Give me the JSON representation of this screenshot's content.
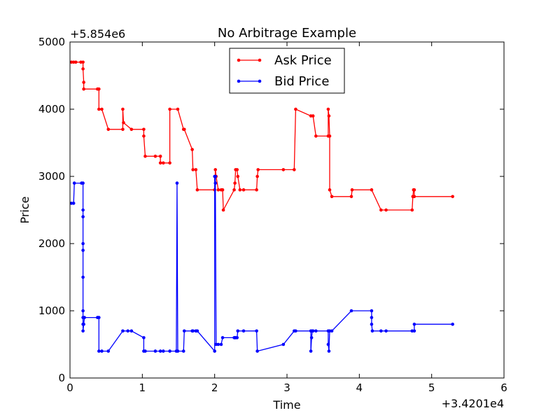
{
  "chart_data": {
    "type": "line",
    "title": "No Arbitrage Example",
    "xlabel": "Time",
    "ylabel": "Price",
    "x_offset_label": "+3.4201e4",
    "y_offset_label": "+5.854e6",
    "xlim": [
      0,
      6
    ],
    "ylim": [
      0,
      5000
    ],
    "x_ticks": [
      "0",
      "1",
      "2",
      "3",
      "4",
      "5",
      "6"
    ],
    "y_ticks": [
      "0",
      "1000",
      "2000",
      "3000",
      "4000",
      "5000"
    ],
    "legend_position": "top-center",
    "colors": {
      "ask": "#ff0000",
      "bid": "#0000ff"
    },
    "series": [
      {
        "name": "Ask Price",
        "color": "#ff0000",
        "points": [
          [
            0.02,
            4700
          ],
          [
            0.05,
            4700
          ],
          [
            0.08,
            4700
          ],
          [
            0.15,
            4700
          ],
          [
            0.18,
            4700
          ],
          [
            0.18,
            4600
          ],
          [
            0.19,
            4400
          ],
          [
            0.19,
            4300
          ],
          [
            0.38,
            4300
          ],
          [
            0.4,
            4300
          ],
          [
            0.4,
            4000
          ],
          [
            0.44,
            4000
          ],
          [
            0.53,
            3700
          ],
          [
            0.73,
            3700
          ],
          [
            0.73,
            4000
          ],
          [
            0.74,
            3800
          ],
          [
            0.85,
            3700
          ],
          [
            1.02,
            3700
          ],
          [
            1.02,
            3600
          ],
          [
            1.04,
            3300
          ],
          [
            1.18,
            3300
          ],
          [
            1.25,
            3300
          ],
          [
            1.25,
            3200
          ],
          [
            1.29,
            3200
          ],
          [
            1.38,
            3200
          ],
          [
            1.38,
            4000
          ],
          [
            1.49,
            4000
          ],
          [
            1.57,
            3700
          ],
          [
            1.58,
            3700
          ],
          [
            1.69,
            3400
          ],
          [
            1.7,
            3100
          ],
          [
            1.74,
            3100
          ],
          [
            1.76,
            2800
          ],
          [
            2.0,
            2800
          ],
          [
            2.01,
            3100
          ],
          [
            2.02,
            3000
          ],
          [
            2.05,
            2800
          ],
          [
            2.09,
            2800
          ],
          [
            2.11,
            2800
          ],
          [
            2.12,
            2500
          ],
          [
            2.27,
            2800
          ],
          [
            2.28,
            2900
          ],
          [
            2.29,
            3100
          ],
          [
            2.31,
            3100
          ],
          [
            2.32,
            3000
          ],
          [
            2.35,
            2800
          ],
          [
            2.4,
            2800
          ],
          [
            2.58,
            2800
          ],
          [
            2.59,
            3000
          ],
          [
            2.6,
            3100
          ],
          [
            2.95,
            3100
          ],
          [
            3.1,
            3100
          ],
          [
            3.12,
            4000
          ],
          [
            3.33,
            3900
          ],
          [
            3.36,
            3900
          ],
          [
            3.4,
            3600
          ],
          [
            3.57,
            3600
          ],
          [
            3.57,
            4000
          ],
          [
            3.58,
            3900
          ],
          [
            3.59,
            3600
          ],
          [
            3.59,
            2800
          ],
          [
            3.62,
            2700
          ],
          [
            3.89,
            2700
          ],
          [
            3.9,
            2800
          ],
          [
            4.17,
            2800
          ],
          [
            4.3,
            2500
          ],
          [
            4.37,
            2500
          ],
          [
            4.73,
            2500
          ],
          [
            4.74,
            2700
          ],
          [
            4.75,
            2800
          ],
          [
            4.76,
            2800
          ],
          [
            4.76,
            2700
          ],
          [
            5.29,
            2700
          ]
        ]
      },
      {
        "name": "Bid Price",
        "color": "#0000ff",
        "points": [
          [
            0.02,
            2600
          ],
          [
            0.05,
            2600
          ],
          [
            0.06,
            2900
          ],
          [
            0.16,
            2900
          ],
          [
            0.18,
            2900
          ],
          [
            0.18,
            2500
          ],
          [
            0.18,
            2400
          ],
          [
            0.18,
            2000
          ],
          [
            0.18,
            1900
          ],
          [
            0.18,
            1500
          ],
          [
            0.18,
            1000
          ],
          [
            0.18,
            900
          ],
          [
            0.18,
            800
          ],
          [
            0.18,
            700
          ],
          [
            0.19,
            800
          ],
          [
            0.2,
            900
          ],
          [
            0.38,
            900
          ],
          [
            0.4,
            900
          ],
          [
            0.4,
            400
          ],
          [
            0.44,
            400
          ],
          [
            0.53,
            400
          ],
          [
            0.73,
            700
          ],
          [
            0.8,
            700
          ],
          [
            0.85,
            700
          ],
          [
            1.02,
            600
          ],
          [
            1.02,
            400
          ],
          [
            1.04,
            400
          ],
          [
            1.18,
            400
          ],
          [
            1.25,
            400
          ],
          [
            1.29,
            400
          ],
          [
            1.38,
            400
          ],
          [
            1.47,
            400
          ],
          [
            1.48,
            2900
          ],
          [
            1.49,
            400
          ],
          [
            1.57,
            400
          ],
          [
            1.58,
            700
          ],
          [
            1.69,
            700
          ],
          [
            1.7,
            700
          ],
          [
            1.74,
            700
          ],
          [
            1.76,
            700
          ],
          [
            2.0,
            400
          ],
          [
            2.0,
            3000
          ],
          [
            2.01,
            3000
          ],
          [
            2.01,
            2900
          ],
          [
            2.02,
            500
          ],
          [
            2.05,
            500
          ],
          [
            2.09,
            500
          ],
          [
            2.11,
            600
          ],
          [
            2.27,
            600
          ],
          [
            2.28,
            600
          ],
          [
            2.29,
            600
          ],
          [
            2.31,
            600
          ],
          [
            2.32,
            700
          ],
          [
            2.4,
            700
          ],
          [
            2.58,
            700
          ],
          [
            2.59,
            400
          ],
          [
            2.95,
            500
          ],
          [
            3.1,
            700
          ],
          [
            3.12,
            700
          ],
          [
            3.33,
            700
          ],
          [
            3.33,
            400
          ],
          [
            3.34,
            600
          ],
          [
            3.35,
            700
          ],
          [
            3.36,
            700
          ],
          [
            3.4,
            700
          ],
          [
            3.57,
            700
          ],
          [
            3.57,
            500
          ],
          [
            3.58,
            400
          ],
          [
            3.59,
            700
          ],
          [
            3.62,
            700
          ],
          [
            3.89,
            1000
          ],
          [
            4.17,
            1000
          ],
          [
            4.17,
            900
          ],
          [
            4.17,
            800
          ],
          [
            4.18,
            700
          ],
          [
            4.3,
            700
          ],
          [
            4.37,
            700
          ],
          [
            4.73,
            700
          ],
          [
            4.76,
            700
          ],
          [
            4.76,
            800
          ],
          [
            5.29,
            800
          ]
        ]
      }
    ]
  }
}
